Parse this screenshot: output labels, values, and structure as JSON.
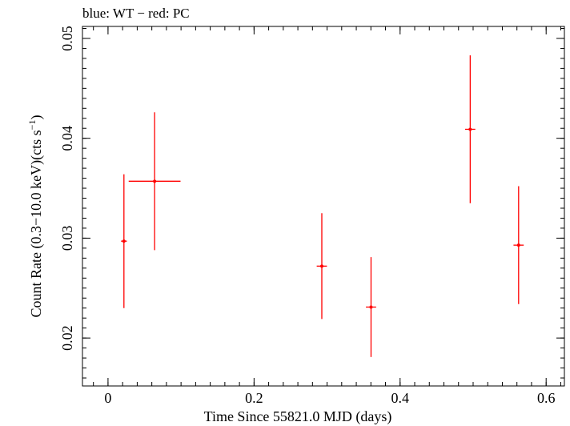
{
  "chart_data": {
    "type": "scatter",
    "title": "blue: WT − red: PC",
    "xlabel": "Time Since 55821.0 MJD (days)",
    "ylabel_main": "Count Rate (0.3−10.0 keV)(cts s",
    "ylabel_sup": "−1",
    "ylabel_close": ")",
    "xlim": [
      -0.035,
      0.625
    ],
    "ylim": [
      0.0152,
      0.0512
    ],
    "x_ticks": [
      0,
      0.2,
      0.4,
      0.6
    ],
    "x_tick_labels": [
      "0",
      "0.2",
      "0.4",
      "0.6"
    ],
    "x_minor_step": 0.02,
    "y_ticks": [
      0.02,
      0.03,
      0.04,
      0.05
    ],
    "y_tick_labels": [
      "0.02",
      "0.03",
      "0.04",
      "0.05"
    ],
    "y_minor_step": 0.001,
    "grid": false,
    "series": [
      {
        "color": "#ff0000",
        "points": [
          {
            "x": 0.0218,
            "xerr": 0.004,
            "y": 0.0297,
            "yerr": 0.0067
          },
          {
            "x": 0.0638,
            "xerr": 0.0355,
            "y": 0.0357,
            "yerr": 0.0069
          },
          {
            "x": 0.2928,
            "xerr": 0.007,
            "y": 0.0272,
            "yerr": 0.0053
          },
          {
            "x": 0.3602,
            "xerr": 0.007,
            "y": 0.0231,
            "yerr": 0.005
          },
          {
            "x": 0.496,
            "xerr": 0.007,
            "y": 0.0409,
            "yerr": 0.0074
          },
          {
            "x": 0.5623,
            "xerr": 0.007,
            "y": 0.0293,
            "yerr": 0.0059
          }
        ]
      }
    ]
  }
}
